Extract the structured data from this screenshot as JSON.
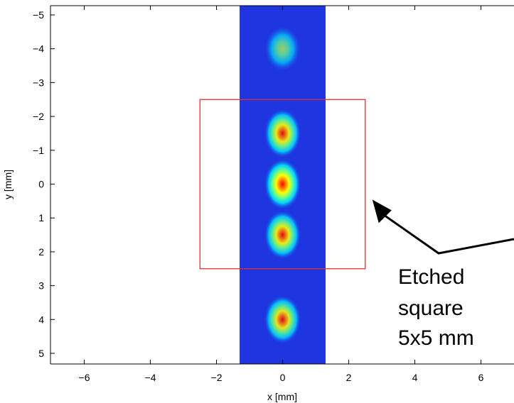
{
  "chart_data": {
    "type": "heatmap",
    "title": "",
    "xlabel": "x [mm]",
    "ylabel": "y [mm]",
    "xlim": [
      -6.6,
      6.6
    ],
    "ylim": [
      -5.3,
      5.3
    ],
    "y_axis_reversed": true,
    "x_ticks": [
      -6,
      -4,
      -2,
      0,
      2,
      4,
      6
    ],
    "x_tick_labels": [
      "−6",
      "−4",
      "−2",
      "0",
      "2",
      "4",
      "6"
    ],
    "y_ticks": [
      -5,
      -4,
      -3,
      -2,
      -1,
      0,
      1,
      2,
      3,
      4,
      5
    ],
    "y_tick_labels": [
      "−5",
      "−4",
      "−3",
      "−2",
      "−1",
      "0",
      "1",
      "2",
      "3",
      "4",
      "5"
    ],
    "grid": false,
    "colormap": "jet",
    "background_band": {
      "x_range": [
        -1.3,
        1.3
      ],
      "color": "#1e35e0"
    },
    "spots": [
      {
        "x": 0.0,
        "y": -4.0,
        "peak": 0.45
      },
      {
        "x": 0.0,
        "y": -1.5,
        "peak": 0.78
      },
      {
        "x": 0.0,
        "y": 0.0,
        "peak": 1.0
      },
      {
        "x": 0.0,
        "y": 1.5,
        "peak": 0.78
      },
      {
        "x": 0.0,
        "y": 4.0,
        "peak": 0.72
      }
    ],
    "etched_square": {
      "x": [
        -2.5,
        2.5
      ],
      "y": [
        -2.5,
        2.5
      ],
      "color": "#e03030"
    },
    "annotation": {
      "lines": [
        "Etched",
        "square",
        "5x5 mm"
      ],
      "arrow_points_to": {
        "x": 2.5,
        "y": 0.25
      }
    }
  }
}
